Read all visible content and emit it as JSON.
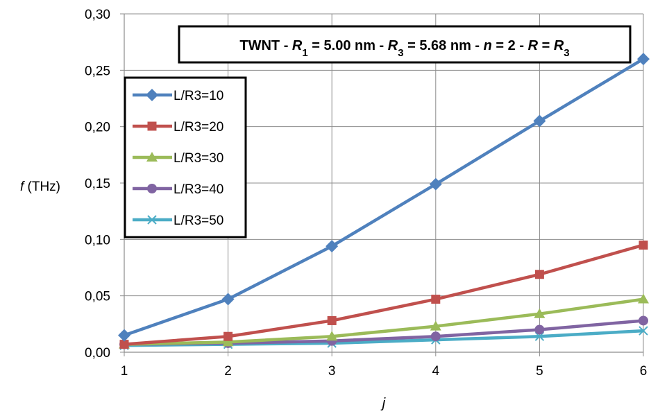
{
  "chart_data": {
    "type": "line",
    "title_parts": [
      {
        "text": "TWNT - ",
        "italic": false
      },
      {
        "text": "R",
        "italic": true
      },
      {
        "text": "1",
        "sub": true
      },
      {
        "text": " = 5.00 nm - ",
        "italic": false
      },
      {
        "text": "R",
        "italic": true
      },
      {
        "text": "3",
        "sub": true
      },
      {
        "text": " = 5.68 nm - ",
        "italic": false
      },
      {
        "text": "n",
        "italic": true
      },
      {
        "text": " = 2 - ",
        "italic": false
      },
      {
        "text": "R",
        "italic": true
      },
      {
        "text": " = ",
        "italic": false
      },
      {
        "text": "R",
        "italic": true
      },
      {
        "text": "3",
        "sub": true
      }
    ],
    "xlabel": "j",
    "ylabel_italic": "f",
    "ylabel_unit": " (THz)",
    "x": [
      1,
      2,
      3,
      4,
      5,
      6
    ],
    "xlim": [
      1,
      6
    ],
    "ylim": [
      0,
      0.3
    ],
    "yticks": [
      "0,00",
      "0,05",
      "0,10",
      "0,15",
      "0,20",
      "0,25",
      "0,30"
    ],
    "xticks": [
      "1",
      "2",
      "3",
      "4",
      "5",
      "6"
    ],
    "grid": true,
    "legend": "top-left",
    "series": [
      {
        "name": "L/R3=10",
        "color": "#4F81BD",
        "marker": "diamond",
        "values": [
          0.015,
          0.047,
          0.094,
          0.149,
          0.205,
          0.26
        ]
      },
      {
        "name": "L/R3=20",
        "color": "#C0504D",
        "marker": "square",
        "values": [
          0.007,
          0.014,
          0.028,
          0.047,
          0.069,
          0.095
        ]
      },
      {
        "name": "L/R3=30",
        "color": "#9BBB59",
        "marker": "triangle",
        "values": [
          0.007,
          0.009,
          0.014,
          0.023,
          0.034,
          0.047
        ]
      },
      {
        "name": "L/R3=40",
        "color": "#8064A2",
        "marker": "circle",
        "values": [
          0.007,
          0.008,
          0.01,
          0.014,
          0.02,
          0.028
        ]
      },
      {
        "name": "L/R3=50",
        "color": "#4BACC6",
        "marker": "x",
        "values": [
          0.006,
          0.007,
          0.008,
          0.011,
          0.014,
          0.019
        ]
      }
    ]
  }
}
